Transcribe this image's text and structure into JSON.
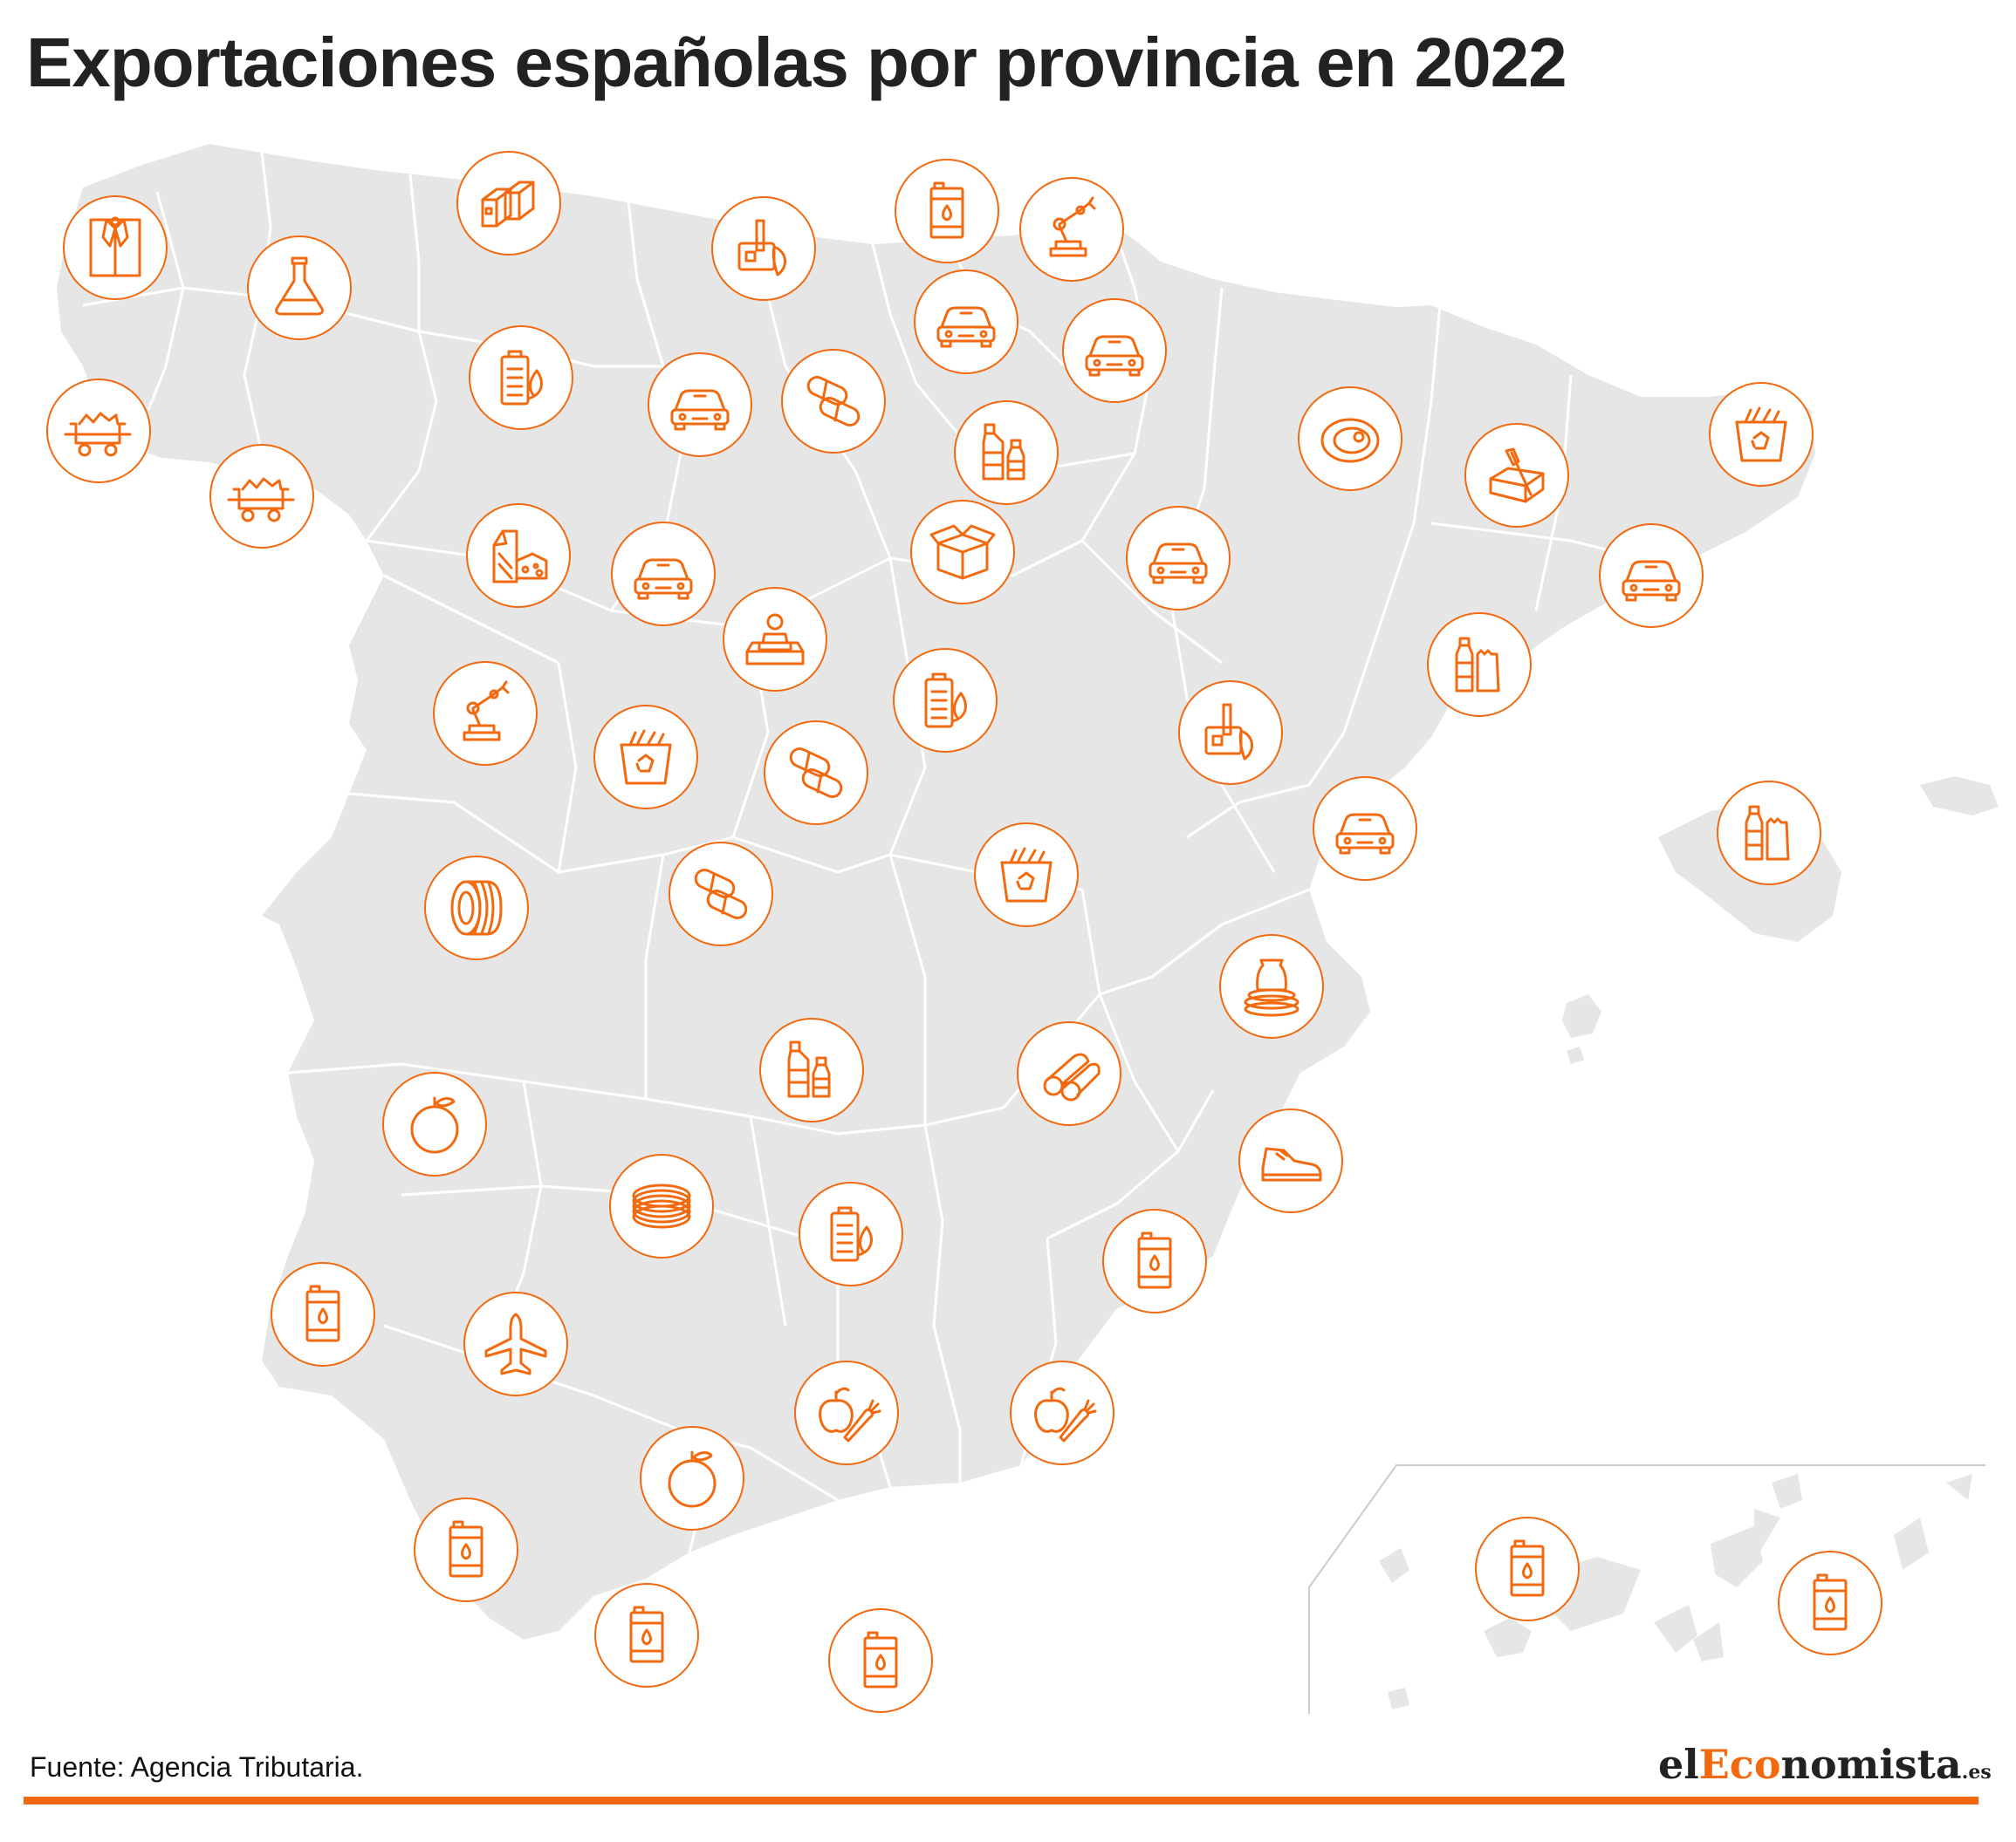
{
  "title": "Exportaciones españolas por provincia en 2022",
  "source": "Fuente: Agencia Tributaria.",
  "logo": {
    "part1": "el",
    "part2": "Eco",
    "part3": "nomista",
    "part4": ".es"
  },
  "colors": {
    "accent": "#f26a10",
    "land": "#e6e6e6",
    "border": "#ffffff"
  },
  "markers": [
    {
      "icon": "shirt"
    },
    {
      "icon": "flask"
    },
    {
      "icon": "steel-profile"
    },
    {
      "icon": "machinery"
    },
    {
      "icon": "oil-barrel"
    },
    {
      "icon": "robot-arm"
    },
    {
      "icon": "mining-cart"
    },
    {
      "icon": "battery"
    },
    {
      "icon": "car"
    },
    {
      "icon": "car"
    },
    {
      "icon": "mining-cart"
    },
    {
      "icon": "car"
    },
    {
      "icon": "pills"
    },
    {
      "icon": "bottles"
    },
    {
      "icon": "meat"
    },
    {
      "icon": "butter"
    },
    {
      "icon": "recycling-bin"
    },
    {
      "icon": "dairy"
    },
    {
      "icon": "car"
    },
    {
      "icon": "box"
    },
    {
      "icon": "car"
    },
    {
      "icon": "car"
    },
    {
      "icon": "furniture"
    },
    {
      "icon": "battery"
    },
    {
      "icon": "beverage-pack"
    },
    {
      "icon": "robot-arm"
    },
    {
      "icon": "recycling-bin"
    },
    {
      "icon": "pills"
    },
    {
      "icon": "machinery"
    },
    {
      "icon": "car"
    },
    {
      "icon": "beverage-pack"
    },
    {
      "icon": "tire"
    },
    {
      "icon": "pills"
    },
    {
      "icon": "recycling-bin"
    },
    {
      "icon": "ceramics"
    },
    {
      "icon": "bottles"
    },
    {
      "icon": "pipes"
    },
    {
      "icon": "orange"
    },
    {
      "icon": "shoe"
    },
    {
      "icon": "wire"
    },
    {
      "icon": "battery"
    },
    {
      "icon": "oil-barrel"
    },
    {
      "icon": "oil-barrel"
    },
    {
      "icon": "airplane"
    },
    {
      "icon": "fruit-vegetables"
    },
    {
      "icon": "fruit-vegetables"
    },
    {
      "icon": "orange"
    },
    {
      "icon": "oil-barrel"
    },
    {
      "icon": "oil-barrel"
    },
    {
      "icon": "oil-barrel"
    },
    {
      "icon": "oil-barrel"
    },
    {
      "icon": "oil-barrel"
    }
  ]
}
